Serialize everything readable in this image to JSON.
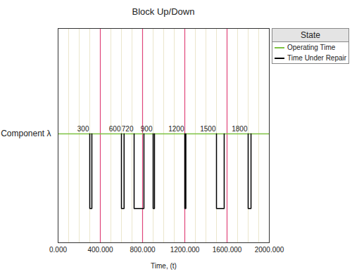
{
  "chart_data": {
    "type": "up_down",
    "title": "Block Up/Down",
    "xlabel": "Time, (t)",
    "categories": [
      "Component λ"
    ],
    "series": [
      {
        "name": "Operating Time",
        "color": "#7dc242"
      },
      {
        "name": "Time Under Repair",
        "color": "#000000",
        "start": [
          300,
          600,
          720,
          900,
          1200,
          1500,
          1800
        ],
        "end": [
          320,
          625,
          813,
          913,
          1210,
          1573,
          1827
        ]
      }
    ],
    "data_labels": true,
    "legend": "right",
    "legend_title": "State",
    "xlim": [
      0,
      2000
    ],
    "xticks": [
      {
        "value": 0,
        "label": "0.000"
      },
      {
        "value": 400,
        "label": "400.000"
      },
      {
        "value": 800,
        "label": "800.000"
      },
      {
        "value": 1200,
        "label": "1200.000"
      },
      {
        "value": 1600,
        "label": "1600.000"
      },
      {
        "value": 2000,
        "label": "2000.000"
      }
    ],
    "grid": true,
    "gridlines": [
      100,
      200,
      300,
      400,
      500,
      600,
      700,
      800,
      900,
      1000,
      1100,
      1200,
      1300,
      1400,
      1500,
      1600,
      1700,
      1800,
      1900
    ],
    "reference_lines": {
      "values": [
        400,
        800,
        1200,
        1600
      ],
      "color": "#e0457b"
    }
  }
}
